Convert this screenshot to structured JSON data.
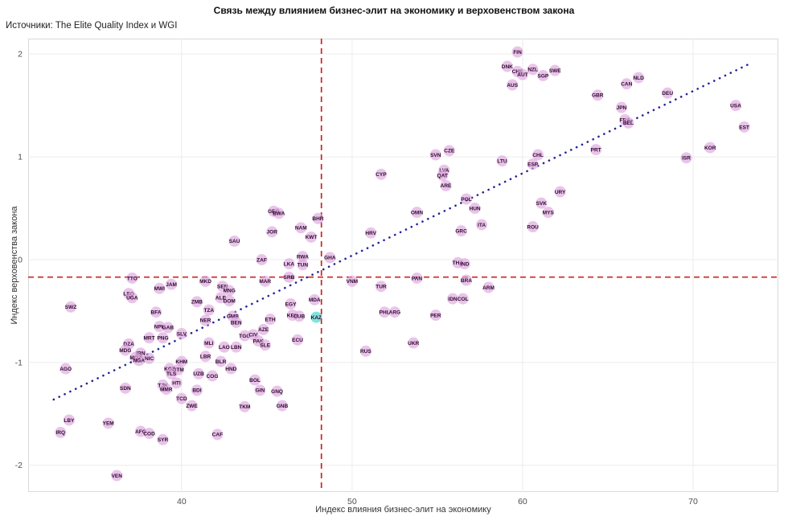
{
  "title": "Связь между влиянием бизнес-элит на экономику и верховенством закона",
  "subtitle": "Источники: The Elite Quality Index и WGI",
  "chart_data": {
    "type": "scatter",
    "xlabel": "Индекс влияния бизнес-элит на экономику",
    "ylabel": "Индекс верховенства закона",
    "xlim": [
      31,
      75
    ],
    "ylim": [
      -2.26,
      2.15
    ],
    "x_ticks": [
      40,
      50,
      60,
      70
    ],
    "y_ticks": [
      -2,
      -1,
      0,
      1,
      2
    ],
    "grid": true,
    "legend": "none",
    "point_color": "#dda4dd",
    "point_opacity": 0.65,
    "highlight_color": "#3fd2c7",
    "label_color": "#2d0a2d",
    "reference_lines": {
      "vertical_x": 48.2,
      "horizontal_y": -0.17,
      "color": "#cc2222",
      "style": "dashed"
    },
    "trend_line": {
      "x_start": 32.5,
      "x_end": 73.2,
      "slope": 0.08,
      "intercept": -3.96,
      "color": "#22229b",
      "style": "dotted"
    },
    "points": [
      {
        "code": "FIN",
        "x": 59.7,
        "y": 2.02
      },
      {
        "code": "DNK",
        "x": 59.1,
        "y": 1.88
      },
      {
        "code": "CHE",
        "x": 59.7,
        "y": 1.83
      },
      {
        "code": "AUT",
        "x": 60.0,
        "y": 1.8
      },
      {
        "code": "NZL",
        "x": 60.6,
        "y": 1.85
      },
      {
        "code": "SGP",
        "x": 61.2,
        "y": 1.79
      },
      {
        "code": "SWE",
        "x": 61.9,
        "y": 1.84
      },
      {
        "code": "AUS",
        "x": 59.4,
        "y": 1.7
      },
      {
        "code": "GBR",
        "x": 64.4,
        "y": 1.6
      },
      {
        "code": "CAN",
        "x": 66.1,
        "y": 1.71
      },
      {
        "code": "NLD",
        "x": 66.8,
        "y": 1.77
      },
      {
        "code": "DEU",
        "x": 68.5,
        "y": 1.62
      },
      {
        "code": "JPN",
        "x": 65.8,
        "y": 1.48
      },
      {
        "code": "FRA",
        "x": 66.0,
        "y": 1.36
      },
      {
        "code": "BEL",
        "x": 66.2,
        "y": 1.33
      },
      {
        "code": "USA",
        "x": 72.5,
        "y": 1.5
      },
      {
        "code": "EST",
        "x": 73.0,
        "y": 1.29
      },
      {
        "code": "KOR",
        "x": 71.0,
        "y": 1.09
      },
      {
        "code": "ISR",
        "x": 69.6,
        "y": 0.99
      },
      {
        "code": "PRT",
        "x": 64.3,
        "y": 1.07
      },
      {
        "code": "SVN",
        "x": 54.9,
        "y": 1.02
      },
      {
        "code": "CZE",
        "x": 55.7,
        "y": 1.06
      },
      {
        "code": "LTU",
        "x": 58.8,
        "y": 0.96
      },
      {
        "code": "CHL",
        "x": 60.9,
        "y": 1.02
      },
      {
        "code": "ESP",
        "x": 60.6,
        "y": 0.93
      },
      {
        "code": "LVA",
        "x": 55.4,
        "y": 0.87
      },
      {
        "code": "QAT",
        "x": 55.3,
        "y": 0.82
      },
      {
        "code": "ARE",
        "x": 55.5,
        "y": 0.72
      },
      {
        "code": "CYP",
        "x": 51.7,
        "y": 0.83
      },
      {
        "code": "POL",
        "x": 56.7,
        "y": 0.59
      },
      {
        "code": "HUN",
        "x": 57.2,
        "y": 0.5
      },
      {
        "code": "URY",
        "x": 62.2,
        "y": 0.66
      },
      {
        "code": "SVK",
        "x": 61.1,
        "y": 0.55
      },
      {
        "code": "MYS",
        "x": 61.5,
        "y": 0.46
      },
      {
        "code": "OMN",
        "x": 53.8,
        "y": 0.46
      },
      {
        "code": "GRC",
        "x": 56.4,
        "y": 0.28
      },
      {
        "code": "ITA",
        "x": 57.6,
        "y": 0.34
      },
      {
        "code": "ROU",
        "x": 60.6,
        "y": 0.32
      },
      {
        "code": "HRV",
        "x": 51.1,
        "y": 0.26
      },
      {
        "code": "THA",
        "x": 56.2,
        "y": -0.03
      },
      {
        "code": "IND",
        "x": 56.6,
        "y": -0.04
      },
      {
        "code": "GEO",
        "x": 45.4,
        "y": 0.47
      },
      {
        "code": "BWA",
        "x": 45.7,
        "y": 0.45
      },
      {
        "code": "BHR",
        "x": 48.0,
        "y": 0.4
      },
      {
        "code": "NAM",
        "x": 47.0,
        "y": 0.31
      },
      {
        "code": "JOR",
        "x": 45.3,
        "y": 0.27
      },
      {
        "code": "KWT",
        "x": 47.6,
        "y": 0.22
      },
      {
        "code": "SAU",
        "x": 43.1,
        "y": 0.18
      },
      {
        "code": "ZAF",
        "x": 44.7,
        "y": 0.0
      },
      {
        "code": "RWA",
        "x": 47.1,
        "y": 0.03
      },
      {
        "code": "TUN",
        "x": 47.1,
        "y": -0.05
      },
      {
        "code": "LKA",
        "x": 46.3,
        "y": -0.04
      },
      {
        "code": "GHA",
        "x": 48.7,
        "y": 0.02
      },
      {
        "code": "SRB",
        "x": 46.3,
        "y": -0.17
      },
      {
        "code": "MAR",
        "x": 44.9,
        "y": -0.21
      },
      {
        "code": "VNM",
        "x": 50.0,
        "y": -0.21
      },
      {
        "code": "PAN",
        "x": 53.8,
        "y": -0.18
      },
      {
        "code": "TUR",
        "x": 51.7,
        "y": -0.26
      },
      {
        "code": "BRA",
        "x": 56.7,
        "y": -0.2
      },
      {
        "code": "ARM",
        "x": 58.0,
        "y": -0.27
      },
      {
        "code": "IDN",
        "x": 55.9,
        "y": -0.38
      },
      {
        "code": "COL",
        "x": 56.5,
        "y": -0.38
      },
      {
        "code": "PER",
        "x": 54.9,
        "y": -0.54
      },
      {
        "code": "PHL",
        "x": 51.9,
        "y": -0.51
      },
      {
        "code": "ARG",
        "x": 52.5,
        "y": -0.51
      },
      {
        "code": "UKR",
        "x": 53.6,
        "y": -0.81
      },
      {
        "code": "RUS",
        "x": 50.8,
        "y": -0.89
      },
      {
        "code": "TTO",
        "x": 37.1,
        "y": -0.18
      },
      {
        "code": "JAM",
        "x": 39.4,
        "y": -0.24
      },
      {
        "code": "MWI",
        "x": 38.7,
        "y": -0.28
      },
      {
        "code": "MKD",
        "x": 41.4,
        "y": -0.21
      },
      {
        "code": "SEN",
        "x": 42.4,
        "y": -0.26
      },
      {
        "code": "MNG",
        "x": 42.8,
        "y": -0.3
      },
      {
        "code": "LSO",
        "x": 36.9,
        "y": -0.33
      },
      {
        "code": "UGA",
        "x": 37.1,
        "y": -0.37
      },
      {
        "code": "ZMB",
        "x": 40.9,
        "y": -0.41
      },
      {
        "code": "ALB",
        "x": 42.3,
        "y": -0.37
      },
      {
        "code": "DOM",
        "x": 42.8,
        "y": -0.4
      },
      {
        "code": "SWZ",
        "x": 33.5,
        "y": -0.46
      },
      {
        "code": "BFA",
        "x": 38.5,
        "y": -0.51
      },
      {
        "code": "TZA",
        "x": 41.6,
        "y": -0.49
      },
      {
        "code": "GMB",
        "x": 43.0,
        "y": -0.55
      },
      {
        "code": "NER",
        "x": 41.4,
        "y": -0.59
      },
      {
        "code": "BEN",
        "x": 43.2,
        "y": -0.61
      },
      {
        "code": "ETH",
        "x": 45.2,
        "y": -0.58
      },
      {
        "code": "EGY",
        "x": 46.4,
        "y": -0.43
      },
      {
        "code": "MDA",
        "x": 47.8,
        "y": -0.39
      },
      {
        "code": "KEN",
        "x": 46.5,
        "y": -0.54
      },
      {
        "code": "CUB",
        "x": 46.9,
        "y": -0.55
      },
      {
        "code": "KAZ",
        "x": 47.9,
        "y": -0.56,
        "highlight": true
      },
      {
        "code": "NPL",
        "x": 38.7,
        "y": -0.65
      },
      {
        "code": "GAB",
        "x": 39.2,
        "y": -0.66
      },
      {
        "code": "SLV",
        "x": 40.0,
        "y": -0.72
      },
      {
        "code": "MRT",
        "x": 38.1,
        "y": -0.76
      },
      {
        "code": "PNG",
        "x": 38.9,
        "y": -0.76
      },
      {
        "code": "AZE",
        "x": 44.8,
        "y": -0.68
      },
      {
        "code": "TGO",
        "x": 43.7,
        "y": -0.74
      },
      {
        "code": "CIV",
        "x": 44.2,
        "y": -0.73
      },
      {
        "code": "PAK",
        "x": 44.5,
        "y": -0.79
      },
      {
        "code": "SLE",
        "x": 44.9,
        "y": -0.83
      },
      {
        "code": "MLI",
        "x": 41.6,
        "y": -0.81
      },
      {
        "code": "LAO",
        "x": 42.5,
        "y": -0.85
      },
      {
        "code": "LBN",
        "x": 43.2,
        "y": -0.85
      },
      {
        "code": "ECU",
        "x": 46.8,
        "y": -0.78
      },
      {
        "code": "DZA",
        "x": 36.9,
        "y": -0.82
      },
      {
        "code": "MDG",
        "x": 36.7,
        "y": -0.88
      },
      {
        "code": "IRN",
        "x": 37.6,
        "y": -0.91
      },
      {
        "code": "MOZ",
        "x": 37.3,
        "y": -0.95
      },
      {
        "code": "NGA",
        "x": 37.5,
        "y": -0.98
      },
      {
        "code": "NIC",
        "x": 38.1,
        "y": -0.96
      },
      {
        "code": "AGO",
        "x": 33.2,
        "y": -1.06
      },
      {
        "code": "KHM",
        "x": 40.0,
        "y": -0.99
      },
      {
        "code": "LBR",
        "x": 41.4,
        "y": -0.94
      },
      {
        "code": "BLR",
        "x": 42.3,
        "y": -0.99
      },
      {
        "code": "KGZ",
        "x": 39.3,
        "y": -1.06
      },
      {
        "code": "GTM",
        "x": 39.8,
        "y": -1.07
      },
      {
        "code": "TLS",
        "x": 39.4,
        "y": -1.11
      },
      {
        "code": "UZB",
        "x": 41.0,
        "y": -1.11
      },
      {
        "code": "COG",
        "x": 41.8,
        "y": -1.13
      },
      {
        "code": "HND",
        "x": 42.9,
        "y": -1.06
      },
      {
        "code": "HTI",
        "x": 39.7,
        "y": -1.2
      },
      {
        "code": "TJK",
        "x": 38.9,
        "y": -1.22
      },
      {
        "code": "MMR",
        "x": 39.1,
        "y": -1.26
      },
      {
        "code": "SDN",
        "x": 36.7,
        "y": -1.25
      },
      {
        "code": "BOL",
        "x": 44.3,
        "y": -1.17
      },
      {
        "code": "BDI",
        "x": 40.9,
        "y": -1.27
      },
      {
        "code": "GIN",
        "x": 44.6,
        "y": -1.27
      },
      {
        "code": "GNQ",
        "x": 45.6,
        "y": -1.28
      },
      {
        "code": "TCD",
        "x": 40.0,
        "y": -1.35
      },
      {
        "code": "ZWE",
        "x": 40.6,
        "y": -1.42
      },
      {
        "code": "TKM",
        "x": 43.7,
        "y": -1.43
      },
      {
        "code": "GNB",
        "x": 45.9,
        "y": -1.42
      },
      {
        "code": "LBY",
        "x": 33.4,
        "y": -1.56
      },
      {
        "code": "YEM",
        "x": 35.7,
        "y": -1.59
      },
      {
        "code": "IRQ",
        "x": 32.9,
        "y": -1.68
      },
      {
        "code": "AFG",
        "x": 37.6,
        "y": -1.67
      },
      {
        "code": "COD",
        "x": 38.1,
        "y": -1.69
      },
      {
        "code": "SYR",
        "x": 38.9,
        "y": -1.75
      },
      {
        "code": "CAF",
        "x": 42.1,
        "y": -1.7
      },
      {
        "code": "VEN",
        "x": 36.2,
        "y": -2.1
      }
    ]
  }
}
